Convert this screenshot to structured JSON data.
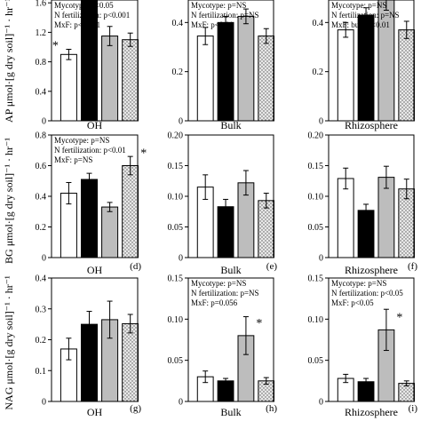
{
  "colors": {
    "white": "#ffffff",
    "black": "#000000",
    "gray": "#bdbdbd",
    "dotted": "#e8e8e8",
    "axis": "#000000"
  },
  "ylabels": {
    "ap": "AP μmol·[g dry soil]⁻¹ · hr⁻¹",
    "bg": "BG μmol·[g dry soil]⁻¹ · hr⁻¹",
    "nag": "NAG μmol·[g dry soil]⁻¹ · hr⁻¹"
  },
  "chart_data": [
    {
      "type": "bar",
      "panel": "ap-oh",
      "xlabel": "OH",
      "letter": "",
      "ylim": [
        0,
        2.0
      ],
      "ticks": [
        {
          "v": 0,
          "t": "0"
        },
        {
          "v": 0.4,
          "t": "0.4"
        },
        {
          "v": 0.8,
          "t": "0.8"
        },
        {
          "v": 1.2,
          "t": "1.2"
        },
        {
          "v": 1.6,
          "t": "1.6"
        }
      ],
      "stats": [
        "Mycotype: p<0.05",
        "N fertilization: p<0.001",
        "MxF: p<0.001"
      ],
      "values": [
        0.9,
        1.9,
        1.15,
        1.1
      ],
      "errors": [
        0.07,
        0.05,
        0.13,
        0.09
      ],
      "stars": [
        true,
        false,
        false,
        false
      ]
    },
    {
      "type": "bar",
      "panel": "ap-bulk",
      "xlabel": "Bulk",
      "letter": "",
      "ylim": [
        0,
        0.6
      ],
      "ticks": [
        {
          "v": 0,
          "t": "0"
        },
        {
          "v": 0.2,
          "t": "0.2"
        },
        {
          "v": 0.4,
          "t": "0.4"
        }
      ],
      "stats": [
        "Mycotype: p=NS",
        "N fertilization: p=NS",
        "MxF: p<0.01"
      ],
      "values": [
        0.345,
        0.4,
        0.425,
        0.345
      ],
      "errors": [
        0.035,
        0.025,
        0.03,
        0.03
      ],
      "stars": [
        false,
        false,
        false,
        false
      ]
    },
    {
      "type": "bar",
      "panel": "ap-rhizosphere",
      "xlabel": "Rhizosphere",
      "letter": "",
      "ylim": [
        0,
        0.6
      ],
      "ticks": [
        {
          "v": 0,
          "t": "0"
        },
        {
          "v": 0.2,
          "t": "0.2"
        },
        {
          "v": 0.4,
          "t": "0.4"
        }
      ],
      "stats": [
        "Mycotype: p=NS",
        "N fertilization: p=NS",
        "MxF: bulk p<0.01"
      ],
      "values": [
        0.37,
        0.43,
        0.5,
        0.37
      ],
      "errors": [
        0.03,
        0.03,
        0.05,
        0.035
      ],
      "stars": [
        false,
        false,
        true,
        false
      ]
    },
    {
      "type": "bar",
      "panel": "bg-oh",
      "xlabel": "OH",
      "letter": "(d)",
      "ylim": [
        0,
        0.8
      ],
      "ticks": [
        {
          "v": 0,
          "t": "0"
        },
        {
          "v": 0.2,
          "t": "0.2"
        },
        {
          "v": 0.4,
          "t": "0.4"
        },
        {
          "v": 0.6,
          "t": "0.6"
        },
        {
          "v": 0.8,
          "t": "0.8"
        }
      ],
      "stats": [
        "Mycotype: p=NS",
        "N fertilization: p<0.01",
        "MxF: p=NS"
      ],
      "values": [
        0.42,
        0.51,
        0.33,
        0.6
      ],
      "errors": [
        0.07,
        0.04,
        0.03,
        0.06
      ],
      "stars": [
        false,
        false,
        false,
        true
      ]
    },
    {
      "type": "bar",
      "panel": "bg-bulk",
      "xlabel": "Bulk",
      "letter": "(e)",
      "ylim": [
        0,
        0.2
      ],
      "ticks": [
        {
          "v": 0,
          "t": "0"
        },
        {
          "v": 0.05,
          "t": "0.05"
        },
        {
          "v": 0.1,
          "t": "0.10"
        },
        {
          "v": 0.15,
          "t": "0.15"
        },
        {
          "v": 0.2,
          "t": "0.20"
        }
      ],
      "stats": [],
      "values": [
        0.115,
        0.083,
        0.122,
        0.093
      ],
      "errors": [
        0.02,
        0.012,
        0.02,
        0.012
      ],
      "stars": [
        false,
        false,
        false,
        false
      ]
    },
    {
      "type": "bar",
      "panel": "bg-rhizosphere",
      "xlabel": "Rhizosphere",
      "letter": "(f)",
      "ylim": [
        0,
        0.2
      ],
      "ticks": [
        {
          "v": 0,
          "t": "0"
        },
        {
          "v": 0.05,
          "t": "0.05"
        },
        {
          "v": 0.1,
          "t": "0.10"
        },
        {
          "v": 0.15,
          "t": "0.15"
        },
        {
          "v": 0.2,
          "t": "0.20"
        }
      ],
      "stats": [],
      "values": [
        0.129,
        0.077,
        0.131,
        0.112
      ],
      "errors": [
        0.017,
        0.01,
        0.018,
        0.016
      ],
      "stars": [
        false,
        false,
        false,
        false
      ]
    },
    {
      "type": "bar",
      "panel": "nag-oh",
      "xlabel": "OH",
      "letter": "(g)",
      "ylim": [
        0,
        0.4
      ],
      "ticks": [
        {
          "v": 0,
          "t": "0"
        },
        {
          "v": 0.1,
          "t": "0.1"
        },
        {
          "v": 0.2,
          "t": "0.2"
        },
        {
          "v": 0.3,
          "t": "0.3"
        },
        {
          "v": 0.4,
          "t": "0.4"
        }
      ],
      "stats": [],
      "values": [
        0.17,
        0.25,
        0.265,
        0.252
      ],
      "errors": [
        0.035,
        0.042,
        0.06,
        0.03
      ],
      "stars": [
        false,
        false,
        false,
        false
      ]
    },
    {
      "type": "bar",
      "panel": "nag-bulk",
      "xlabel": "Bulk",
      "letter": "(h)",
      "ylim": [
        0,
        0.15
      ],
      "ticks": [
        {
          "v": 0,
          "t": "0"
        },
        {
          "v": 0.05,
          "t": "0.05"
        },
        {
          "v": 0.1,
          "t": "0.10"
        },
        {
          "v": 0.15,
          "t": "0.15"
        }
      ],
      "stats": [
        "Mycotype: p=NS",
        "N fertilization: p=NS",
        "MxF: p=0.056"
      ],
      "values": [
        0.03,
        0.025,
        0.08,
        0.025
      ],
      "errors": [
        0.007,
        0.003,
        0.023,
        0.004
      ],
      "stars": [
        false,
        false,
        true,
        false
      ]
    },
    {
      "type": "bar",
      "panel": "nag-rhizosphere",
      "xlabel": "Rhizosphere",
      "letter": "(i)",
      "ylim": [
        0,
        0.15
      ],
      "ticks": [
        {
          "v": 0,
          "t": "0"
        },
        {
          "v": 0.05,
          "t": "0.05"
        },
        {
          "v": 0.1,
          "t": "0.10"
        },
        {
          "v": 0.15,
          "t": "0.15"
        }
      ],
      "stats": [
        "Mycotype: p=NS",
        "N fertilization: p<0.05",
        "MxF: p<0.05"
      ],
      "values": [
        0.028,
        0.024,
        0.087,
        0.022
      ],
      "errors": [
        0.005,
        0.004,
        0.025,
        0.003
      ],
      "stars": [
        false,
        false,
        true,
        false
      ]
    }
  ]
}
